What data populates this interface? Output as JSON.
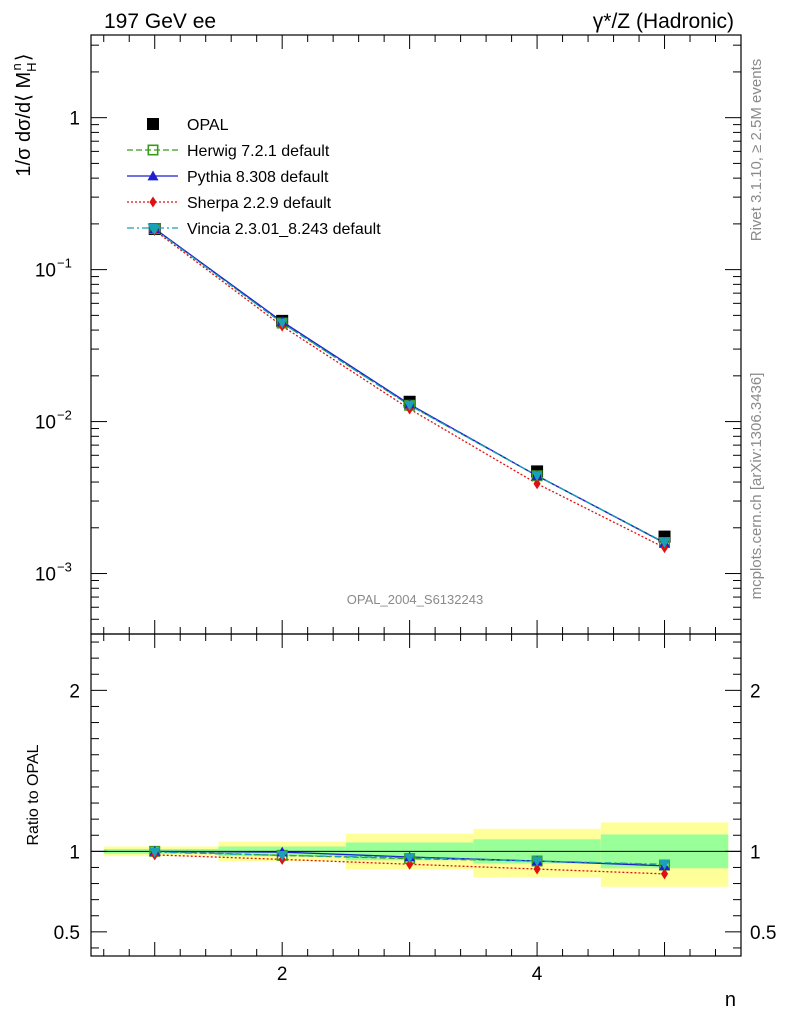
{
  "header": {
    "energy_label": "197 GeV ee",
    "process_label": "γ*/Z (Hadronic)"
  },
  "side_text": {
    "rivet": "Rivet 3.1.10, ≥ 2.5M events",
    "mcplots": "mcplots.cern.ch [arXiv:1306.3436]"
  },
  "watermark": "OPAL_2004_S6132243",
  "colors": {
    "OPAL": "#000000",
    "Herwig": "#3a9a1a",
    "Pythia": "#1f1fd0",
    "Sherpa": "#e01010",
    "Vincia": "#1aa0b8",
    "band_inner": "#99ff99",
    "band_outer": "#ffff99"
  },
  "chart_data": [
    {
      "type": "line",
      "panel": "main",
      "ylabel": "1/σ dσ/d⟨ M",
      "ylabel_sub": "H",
      "ylabel_sup": "n",
      "ylabel_close": "⟩",
      "yscale": "log",
      "ylim": [
        0.0004,
        3.5
      ],
      "xlim": [
        0.5,
        5.6
      ],
      "yticks": [
        {
          "value": 0.001,
          "base": "10",
          "exp": "−3"
        },
        {
          "value": 0.01,
          "base": "10",
          "exp": "−2"
        },
        {
          "value": 0.1,
          "base": "10",
          "exp": "−1"
        },
        {
          "value": 1,
          "base": "1",
          "exp": ""
        }
      ],
      "legend_position": "top-left",
      "x": [
        1,
        2,
        3,
        4,
        5
      ],
      "series": [
        {
          "name": "OPAL",
          "marker": "square-filled",
          "values": [
            0.185,
            0.046,
            0.0135,
            0.0047,
            0.00175
          ]
        },
        {
          "name": "Herwig 7.2.1 default",
          "marker": "square-open",
          "line": "dashed",
          "values": [
            0.186,
            0.0445,
            0.0128,
            0.0044,
            0.0016
          ]
        },
        {
          "name": "Pythia 8.308 default",
          "marker": "triangle-up",
          "line": "solid",
          "values": [
            0.186,
            0.0455,
            0.013,
            0.0044,
            0.00159
          ]
        },
        {
          "name": "Sherpa 2.2.9 default",
          "marker": "diamond",
          "line": "dotted",
          "values": [
            0.181,
            0.0425,
            0.0121,
            0.0039,
            0.00148
          ]
        },
        {
          "name": "Vincia 2.3.01_8.243 default",
          "marker": "triangle-down",
          "line": "dashdot",
          "values": [
            0.184,
            0.0445,
            0.0128,
            0.0044,
            0.0016
          ]
        }
      ]
    },
    {
      "type": "line",
      "panel": "ratio",
      "xlabel": "n",
      "ylabel": "Ratio to OPAL",
      "ylim": [
        0.35,
        2.35
      ],
      "yticks": [
        {
          "value": 0.5,
          "label": "0.5"
        },
        {
          "value": 1,
          "label": "1"
        },
        {
          "value": 2,
          "label": "2"
        }
      ],
      "xticks": [
        {
          "value": 2,
          "label": "2"
        },
        {
          "value": 4,
          "label": "4"
        }
      ],
      "x": [
        1,
        2,
        3,
        4,
        5
      ],
      "bands": [
        {
          "x_low": 0.6,
          "x_high": 1.5,
          "inner": [
            0.985,
            1.015
          ],
          "outer": [
            0.97,
            1.03
          ]
        },
        {
          "x_low": 1.5,
          "x_high": 2.5,
          "inner": [
            0.97,
            1.03
          ],
          "outer": [
            0.94,
            1.06
          ]
        },
        {
          "x_low": 2.5,
          "x_high": 3.5,
          "inner": [
            0.945,
            1.055
          ],
          "outer": [
            0.89,
            1.11
          ]
        },
        {
          "x_low": 3.5,
          "x_high": 4.5,
          "inner": [
            0.925,
            1.075
          ],
          "outer": [
            0.84,
            1.14
          ]
        },
        {
          "x_low": 4.5,
          "x_high": 5.5,
          "inner": [
            0.895,
            1.105
          ],
          "outer": [
            0.78,
            1.18
          ]
        }
      ],
      "series": [
        {
          "name": "Herwig 7.2.1 default",
          "values": [
            1.0,
            0.975,
            0.955,
            0.94,
            0.915
          ]
        },
        {
          "name": "Pythia 8.308 default",
          "values": [
            1.0,
            0.995,
            0.965,
            0.94,
            0.91
          ]
        },
        {
          "name": "Sherpa 2.2.9 default",
          "values": [
            0.978,
            0.95,
            0.92,
            0.89,
            0.86
          ]
        },
        {
          "name": "Vincia 2.3.01_8.243 default",
          "values": [
            0.995,
            0.975,
            0.96,
            0.94,
            0.92
          ]
        }
      ]
    }
  ]
}
